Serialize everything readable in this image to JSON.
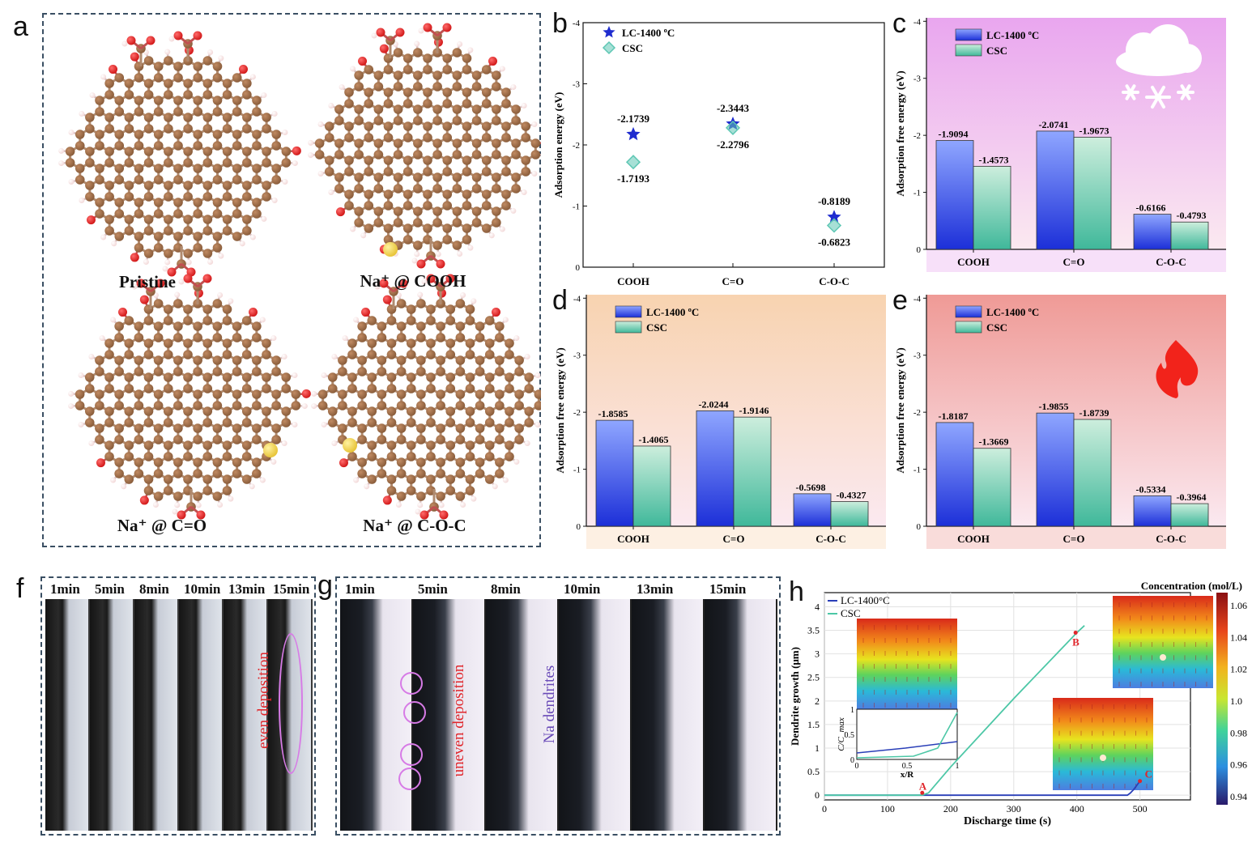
{
  "panel_labels": {
    "a": "a",
    "b": "b",
    "c": "c",
    "d": "d",
    "e": "e",
    "f": "f",
    "g": "g",
    "h": "h"
  },
  "panel_a": {
    "captions": {
      "pristine": "Pristine",
      "cooh": "Na⁺ @ COOH",
      "co": "Na⁺ @ C=O",
      "coc": "Na⁺ @ C-O-C"
    },
    "colors": {
      "carbon": "#8b5e3c",
      "oxygen": "#d21a1a",
      "hydrogen": "#f3d9d9",
      "sodium": "#e8c53a"
    }
  },
  "chart_data": [
    {
      "id": "b",
      "type": "scatter",
      "ylabel": "Adsorption energy (eV)",
      "categories": [
        "COOH",
        "C=O",
        "C-O-C"
      ],
      "yticks": [
        "0",
        "-1",
        "-2",
        "-3",
        "-4"
      ],
      "ylim": [
        0,
        -4
      ],
      "series": [
        {
          "name": "LC-1400 ºC",
          "values": [
            -2.1739,
            -2.3443,
            -0.8189
          ],
          "labels": [
            "-2.1739",
            "-2.3443",
            "-0.8189"
          ],
          "color": "#1f2ccf",
          "marker": "star"
        },
        {
          "name": "CSC",
          "values": [
            -1.7193,
            -2.2796,
            -0.6823
          ],
          "labels": [
            "-1.7193",
            "-2.2796",
            "-0.6823"
          ],
          "color": "#5ec7b4",
          "marker": "diamond"
        }
      ]
    },
    {
      "id": "c",
      "type": "bar",
      "background": "#e9a6ef",
      "ylabel": "Adsorption free energy (eV)",
      "categories": [
        "COOH",
        "C=O",
        "C-O-C"
      ],
      "yticks": [
        "0",
        "-1",
        "-2",
        "-3",
        "-4"
      ],
      "ylim": [
        0,
        -4
      ],
      "series": [
        {
          "name": "LC-1400 ºC",
          "values": [
            -1.9094,
            -2.0741,
            -0.6166
          ],
          "labels": [
            "-1.9094",
            "-2.0741",
            "-0.6166"
          ]
        },
        {
          "name": "CSC",
          "values": [
            -1.4573,
            -1.9673,
            -0.4793
          ],
          "labels": [
            "-1.4573",
            "-1.9673",
            "-0.4793"
          ]
        }
      ]
    },
    {
      "id": "d",
      "type": "bar",
      "background": "#f8d3b0",
      "ylabel": "Adsorption free energy (eV)",
      "categories": [
        "COOH",
        "C=O",
        "C-O-C"
      ],
      "yticks": [
        "0",
        "-1",
        "-2",
        "-3",
        "-4"
      ],
      "ylim": [
        0,
        -4
      ],
      "series": [
        {
          "name": "LC-1400 ºC",
          "values": [
            -1.8585,
            -2.0244,
            -0.5698
          ],
          "labels": [
            "-1.8585",
            "-2.0244",
            "-0.5698"
          ]
        },
        {
          "name": "CSC",
          "values": [
            -1.4065,
            -1.9146,
            -0.4327
          ],
          "labels": [
            "-1.4065",
            "-1.9146",
            "-0.4327"
          ]
        }
      ]
    },
    {
      "id": "e",
      "type": "bar",
      "background": "#ef9a96",
      "ylabel": "Adsorption free energy (eV)",
      "categories": [
        "COOH",
        "C=O",
        "C-O-C"
      ],
      "yticks": [
        "0",
        "-1",
        "-2",
        "-3",
        "-4"
      ],
      "ylim": [
        0,
        -4
      ],
      "series": [
        {
          "name": "LC-1400 ºC",
          "values": [
            -1.8187,
            -1.9855,
            -0.5334
          ],
          "labels": [
            "-1.8187",
            "-1.9855",
            "-0.5334"
          ]
        },
        {
          "name": "CSC",
          "values": [
            -1.3669,
            -1.8739,
            -0.3964
          ],
          "labels": [
            "-1.3669",
            "-1.8739",
            "-0.3964"
          ]
        }
      ]
    },
    {
      "id": "h",
      "type": "line",
      "xlabel": "Discharge time (s)",
      "ylabel": "Dendrite growth (μm)",
      "xlim": [
        0,
        580
      ],
      "ylim": [
        -0.1,
        4.3
      ],
      "xticks": [
        "0",
        "100",
        "200",
        "300",
        "400",
        "500"
      ],
      "yticks": [
        "0",
        "0.5",
        "1",
        "1.5",
        "2",
        "2.5",
        "3",
        "3.5",
        "4"
      ],
      "series": [
        {
          "name": "LC-1400°C",
          "color": "#2a3fb8",
          "x": [
            0,
            160,
            480,
            485,
            490,
            500
          ],
          "y": [
            0,
            0,
            0,
            0.05,
            0.12,
            0.3
          ]
        },
        {
          "name": "CSC",
          "color": "#4cc7a6",
          "x": [
            0,
            155,
            165,
            200,
            300,
            400,
            412
          ],
          "y": [
            0,
            0,
            0.05,
            0.6,
            2.05,
            3.45,
            3.6
          ]
        }
      ],
      "points": [
        {
          "label": "A",
          "x": 155,
          "y": 0.05
        },
        {
          "label": "B",
          "x": 398,
          "y": 3.45
        },
        {
          "label": "C",
          "x": 500,
          "y": 0.3
        }
      ],
      "colorbar": {
        "title": "Concentration (mol/L)",
        "ticks": [
          "1.06",
          "1.04",
          "1.02",
          "1.0",
          "0.98",
          "0.96",
          "0.94"
        ]
      },
      "inset": {
        "ylabel": "C/C_max",
        "xlabel": "x/R",
        "yticks": [
          "0",
          "0.5",
          "1"
        ],
        "xticks": [
          "0",
          "0.5",
          "1"
        ]
      }
    }
  ],
  "panel_f": {
    "times": [
      "1min",
      "5min",
      "8min",
      "10min",
      "13min",
      "15min"
    ],
    "annotation": "even deposition"
  },
  "panel_g": {
    "times": [
      "1min",
      "5min",
      "8min",
      "10min",
      "13min",
      "15min"
    ],
    "annotation_uneven": "uneven deposition",
    "annotation_dendrite": "Na dendrites"
  }
}
